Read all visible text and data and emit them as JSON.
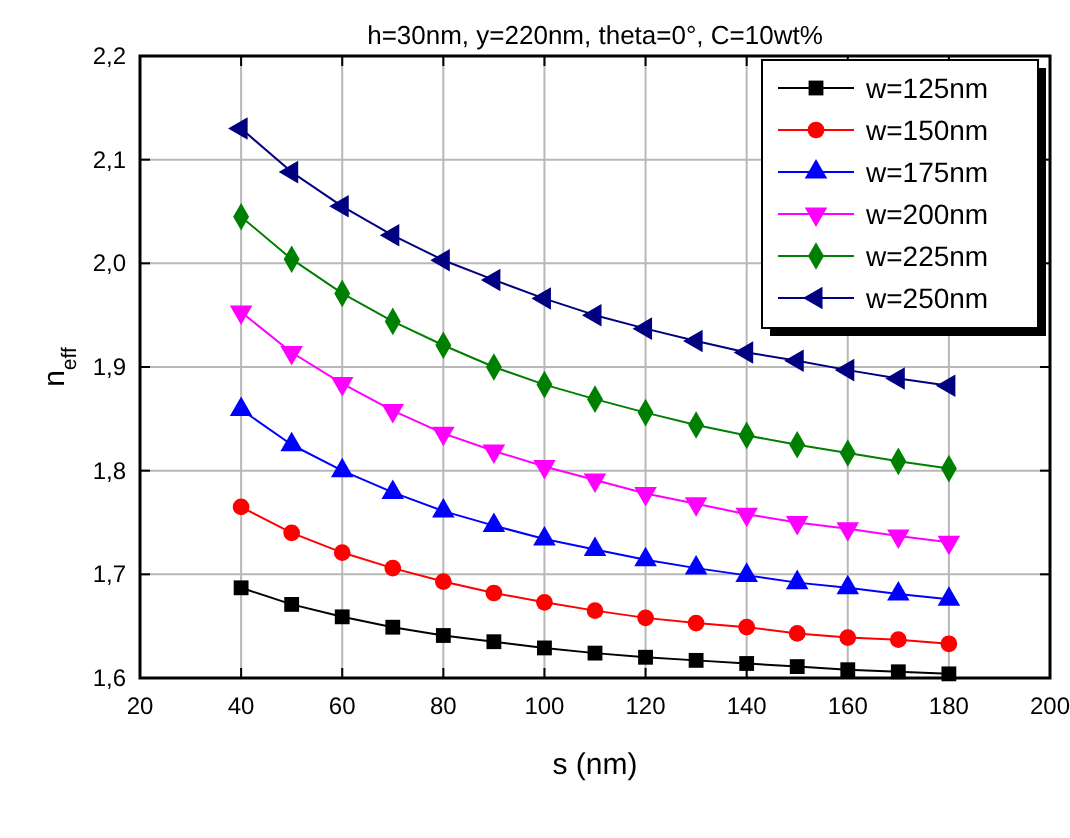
{
  "chart_data": {
    "type": "line",
    "title": "h=30nm, y=220nm, theta=0°, C=10wt%",
    "xlabel": "s (nm)",
    "ylabel": "n$_{eff}$",
    "x": [
      40,
      50,
      60,
      70,
      80,
      90,
      100,
      110,
      120,
      130,
      140,
      150,
      160,
      170,
      180
    ],
    "series": [
      {
        "name": "w=125nm",
        "color": "#000000",
        "marker": "square",
        "values": [
          1.687,
          1.671,
          1.659,
          1.649,
          1.641,
          1.635,
          1.629,
          1.624,
          1.62,
          1.617,
          1.614,
          1.611,
          1.608,
          1.606,
          1.604
        ]
      },
      {
        "name": "w=150nm",
        "color": "#ff0000",
        "marker": "circle",
        "values": [
          1.765,
          1.74,
          1.721,
          1.706,
          1.693,
          1.682,
          1.673,
          1.665,
          1.658,
          1.653,
          1.649,
          1.643,
          1.639,
          1.637,
          1.633
        ]
      },
      {
        "name": "w=175nm",
        "color": "#0000ff",
        "marker": "triangle",
        "values": [
          1.859,
          1.825,
          1.8,
          1.779,
          1.761,
          1.747,
          1.734,
          1.724,
          1.714,
          1.706,
          1.699,
          1.692,
          1.687,
          1.681,
          1.676
        ]
      },
      {
        "name": "w=200nm",
        "color": "#ff00ff",
        "marker": "triangle-down",
        "values": [
          1.953,
          1.914,
          1.884,
          1.858,
          1.836,
          1.819,
          1.804,
          1.791,
          1.778,
          1.768,
          1.758,
          1.75,
          1.744,
          1.737,
          1.731
        ]
      },
      {
        "name": "w=225nm",
        "color": "#008000",
        "marker": "diamond",
        "values": [
          2.045,
          2.004,
          1.971,
          1.944,
          1.921,
          1.9,
          1.883,
          1.869,
          1.856,
          1.844,
          1.834,
          1.825,
          1.817,
          1.809,
          1.802
        ]
      },
      {
        "name": "w=250nm",
        "color": "#000080",
        "marker": "triangle-left",
        "values": [
          2.13,
          2.088,
          2.055,
          2.027,
          2.003,
          1.984,
          1.966,
          1.95,
          1.937,
          1.925,
          1.914,
          1.906,
          1.897,
          1.889,
          1.882
        ]
      }
    ],
    "xlim": [
      20,
      200
    ],
    "xticks": [
      20,
      40,
      60,
      80,
      100,
      120,
      140,
      160,
      180,
      200
    ],
    "ylim": [
      1.6,
      2.2
    ],
    "yticks": [
      {
        "value": 1.6,
        "label": "1,6"
      },
      {
        "value": 1.7,
        "label": "1,7"
      },
      {
        "value": 1.8,
        "label": "1,8"
      },
      {
        "value": 1.9,
        "label": "1,9"
      },
      {
        "value": 2.0,
        "label": "2,0"
      },
      {
        "value": 2.1,
        "label": "2,1"
      },
      {
        "value": 2.2,
        "label": "2,2"
      }
    ],
    "grid": true,
    "legend": "top right",
    "line_style": "solid"
  }
}
